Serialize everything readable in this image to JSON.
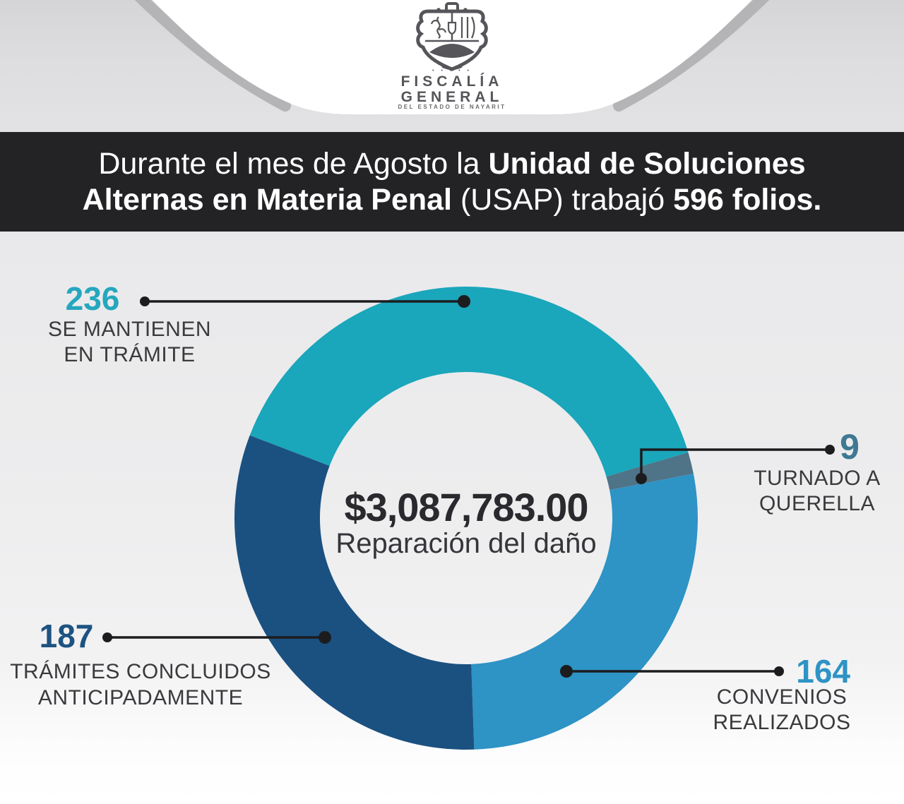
{
  "logo": {
    "ornament_dots": "• • • • •",
    "org_name_line1": "FISCALÍA",
    "org_name_line2": "GENERAL",
    "org_subtitle": "DEL ESTADO DE NAYARIT"
  },
  "headline": {
    "line1_regular": "Durante el mes de Agosto la ",
    "line1_bold": "Unidad de Soluciones",
    "line2_bold": "Alternas en Materia Penal",
    "line2_regular": " (USAP) trabajó ",
    "line2_bold_end": "596 folios."
  },
  "donut_center": {
    "amount": "$3,087,783.00",
    "caption": "Reparación del daño"
  },
  "callouts": {
    "tramite": {
      "number": "236",
      "line1": "SE MANTIENEN",
      "line2": "EN TRÁMITE",
      "color": "#25a7be"
    },
    "querella": {
      "number": "9",
      "line1": "TURNADO A",
      "line2": "QUERELLA",
      "color": "#3e7994"
    },
    "concluidos": {
      "number": "187",
      "line1": "TRÁMITES CONCLUIDOS",
      "line2": "ANTICIPADAMENTE",
      "color": "#1d5381"
    },
    "convenios": {
      "number": "164",
      "line1": "CONVENIOS",
      "line2": "REALIZADOS",
      "color": "#2e93c5"
    }
  },
  "chart_data": {
    "type": "pie",
    "variant": "donut",
    "total": 596,
    "order": "clockwise",
    "center_value": "$3,087,783.00",
    "center_label": "Reparación del daño",
    "segments": [
      {
        "id": "tramite",
        "label": "SE MANTIENEN EN TRÁMITE",
        "value": 236,
        "color": "#1aa6bb"
      },
      {
        "id": "querella",
        "label": "TURNADO A QUERELLA",
        "value": 9,
        "color": "#4f7387"
      },
      {
        "id": "convenios",
        "label": "CONVENIOS REALIZADOS",
        "value": 164,
        "color": "#2e93c5"
      },
      {
        "id": "concluidos",
        "label": "TRÁMITES CONCLUIDOS ANTICIPADAMENTE",
        "value": 187,
        "color": "#1b5180"
      }
    ],
    "accent_colors": {
      "banner_background": "#232326",
      "callout_line": "#1c1c1e",
      "label_text": "#3a3a3d",
      "logo_gray": "#55555a"
    }
  }
}
